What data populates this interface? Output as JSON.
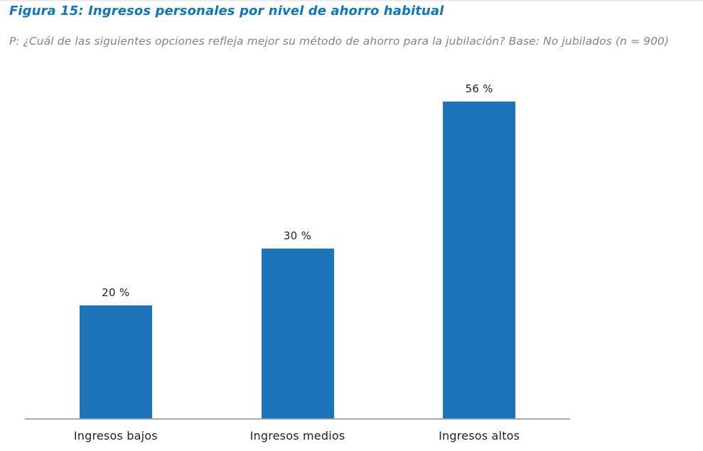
{
  "figure": {
    "title": "Figura 15: Ingresos personales por nivel de ahorro habitual",
    "subtitle": "P: ¿Cuál de las siguientes opciones refleja mejor su método de ahorro para la jubilación? Base: No jubilados (n = 900)"
  },
  "chart_data": {
    "type": "bar",
    "title": "Figura 15: Ingresos personales por nivel de ahorro habitual",
    "subtitle": "P: ¿Cuál de las siguientes opciones refleja mejor su método de ahorro para la jubilación? Base: No jubilados (n = 900)",
    "categories": [
      "Ingresos bajos",
      "Ingresos medios",
      "Ingresos altos"
    ],
    "values": [
      20,
      30,
      56
    ],
    "value_labels": [
      "20 %",
      "30 %",
      "56 %"
    ],
    "xlabel": "",
    "ylabel": "",
    "ylim": [
      0,
      60
    ],
    "grid": false,
    "legend": false,
    "bar_color": "#1c75b8",
    "axis_line_color": "#8b95a0",
    "data_label_color": "#21212b",
    "category_label_color": "#21212b",
    "title_color": "#0d76be",
    "subtitle_color": "#7b8499"
  }
}
